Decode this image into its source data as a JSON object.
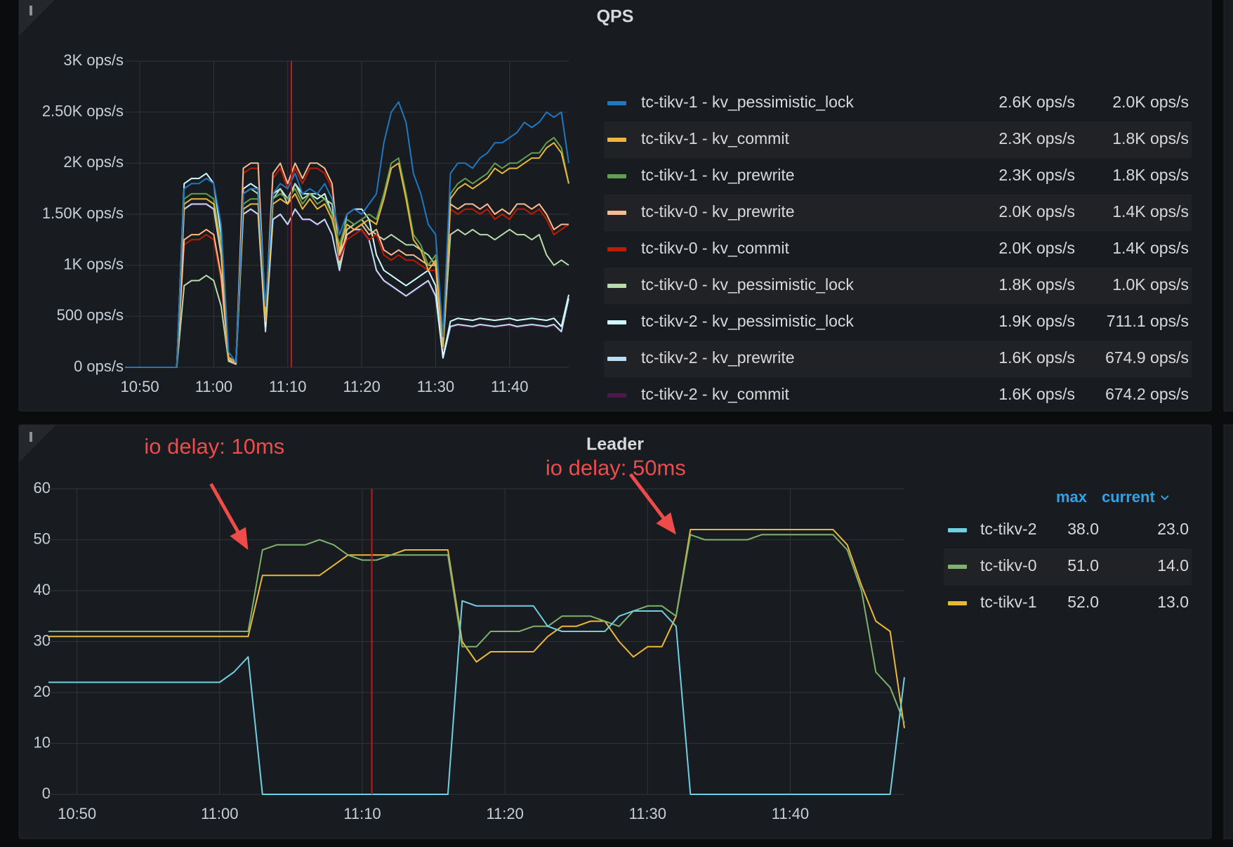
{
  "chart_data": [
    {
      "type": "line",
      "title": "QPS",
      "x": [
        "10:48",
        "10:49",
        "10:50",
        "10:51",
        "10:52",
        "10:53",
        "10:54",
        "10:55",
        "10:56",
        "10:57",
        "10:58",
        "10:59",
        "11:00",
        "11:01",
        "11:02",
        "11:03",
        "11:04",
        "11:05",
        "11:06",
        "11:07",
        "11:08",
        "11:09",
        "11:10",
        "11:11",
        "11:12",
        "11:13",
        "11:14",
        "11:15",
        "11:16",
        "11:17",
        "11:18",
        "11:19",
        "11:20",
        "11:21",
        "11:22",
        "11:23",
        "11:24",
        "11:25",
        "11:26",
        "11:27",
        "11:28",
        "11:29",
        "11:30",
        "11:31",
        "11:32",
        "11:33",
        "11:34",
        "11:35",
        "11:36",
        "11:37",
        "11:38",
        "11:39",
        "11:40",
        "11:41",
        "11:42",
        "11:43",
        "11:44",
        "11:45",
        "11:46",
        "11:47",
        "11:48"
      ],
      "xlim": [
        "10:48",
        "11:48"
      ],
      "xticks": [
        "10:50",
        "11:00",
        "11:10",
        "11:20",
        "11:30",
        "11:40"
      ],
      "ylim": [
        0,
        3000
      ],
      "yticks": [
        {
          "value": 0,
          "label": "0 ops/s"
        },
        {
          "value": 500,
          "label": "500 ops/s"
        },
        {
          "value": 1000,
          "label": "1K ops/s"
        },
        {
          "value": 1500,
          "label": "1.50K ops/s"
        },
        {
          "value": 2000,
          "label": "2K ops/s"
        },
        {
          "value": 2500,
          "label": "2.50K ops/s"
        },
        {
          "value": 3000,
          "label": "3K ops/s"
        }
      ],
      "grid": true,
      "marker": "11:10:30",
      "legend_columns": [
        "max",
        "current"
      ],
      "series": [
        {
          "name": "tc-tikv-1 - kv_pessimistic_lock",
          "color": "#1f78c1",
          "max": "2.6K ops/s",
          "current": "2.0K ops/s",
          "values": [
            0,
            0,
            0,
            0,
            0,
            0,
            0,
            0,
            1750,
            1800,
            1800,
            1850,
            1800,
            1400,
            150,
            50,
            1700,
            1750,
            1750,
            600,
            1700,
            1800,
            1750,
            1900,
            1700,
            1750,
            1700,
            1800,
            1650,
            1300,
            1500,
            1550,
            1500,
            1600,
            1700,
            2200,
            2500,
            2600,
            2400,
            1900,
            1700,
            1400,
            1300,
            300,
            1900,
            2000,
            2000,
            1950,
            2050,
            2100,
            2200,
            2200,
            2250,
            2300,
            2400,
            2350,
            2400,
            2500,
            2450,
            2500,
            2000
          ]
        },
        {
          "name": "tc-tikv-1 - kv_commit",
          "color": "#eab839",
          "max": "2.3K ops/s",
          "current": "1.8K ops/s",
          "values": [
            0,
            0,
            0,
            0,
            0,
            0,
            0,
            0,
            1600,
            1650,
            1650,
            1650,
            1600,
            1150,
            100,
            50,
            1550,
            1600,
            1600,
            450,
            1600,
            1650,
            1600,
            1700,
            1550,
            1650,
            1550,
            1600,
            1450,
            1150,
            1400,
            1350,
            1400,
            1450,
            1400,
            1650,
            1950,
            2000,
            1650,
            1250,
            1150,
            950,
            1050,
            200,
            1650,
            1750,
            1800,
            1750,
            1800,
            1850,
            1950,
            1900,
            1950,
            1950,
            2000,
            2050,
            2050,
            2150,
            2200,
            2100,
            1800
          ]
        },
        {
          "name": "tc-tikv-1 - kv_prewrite",
          "color": "#629e51",
          "max": "2.3K ops/s",
          "current": "1.8K ops/s",
          "values": [
            0,
            0,
            0,
            0,
            0,
            0,
            0,
            0,
            1650,
            1700,
            1700,
            1700,
            1650,
            1200,
            100,
            50,
            1600,
            1650,
            1650,
            500,
            1650,
            1700,
            1650,
            1750,
            1600,
            1700,
            1600,
            1650,
            1500,
            1200,
            1450,
            1400,
            1450,
            1500,
            1450,
            1700,
            2000,
            2050,
            1700,
            1300,
            1200,
            1000,
            1100,
            200,
            1700,
            1800,
            1850,
            1800,
            1850,
            1900,
            2000,
            1950,
            2000,
            2000,
            2050,
            2100,
            2100,
            2200,
            2250,
            2150,
            1800
          ]
        },
        {
          "name": "tc-tikv-0 - kv_prewrite",
          "color": "#f9ba8f",
          "max": "2.0K ops/s",
          "current": "1.4K ops/s",
          "values": [
            0,
            0,
            0,
            0,
            0,
            0,
            0,
            0,
            1250,
            1300,
            1300,
            1350,
            1300,
            900,
            80,
            30,
            1950,
            2000,
            2000,
            500,
            1900,
            2000,
            1800,
            2000,
            1850,
            2000,
            2000,
            1950,
            1800,
            1100,
            1300,
            1350,
            1400,
            1300,
            1350,
            1150,
            1100,
            1150,
            1100,
            1100,
            1050,
            1000,
            1000,
            200,
            1600,
            1550,
            1600,
            1600,
            1550,
            1600,
            1500,
            1550,
            1500,
            1600,
            1600,
            1550,
            1600,
            1500,
            1350,
            1400,
            1400
          ]
        },
        {
          "name": "tc-tikv-0 - kv_commit",
          "color": "#bf1b00",
          "max": "2.0K ops/s",
          "current": "1.4K ops/s",
          "values": [
            0,
            0,
            0,
            0,
            0,
            0,
            0,
            0,
            1200,
            1250,
            1250,
            1300,
            1250,
            850,
            80,
            30,
            1900,
            1950,
            1950,
            480,
            1850,
            1950,
            1750,
            1950,
            1800,
            1950,
            1950,
            1900,
            1750,
            1050,
            1250,
            1300,
            1350,
            1250,
            1300,
            1100,
            1050,
            1100,
            1050,
            1050,
            1000,
            950,
            950,
            190,
            1550,
            1500,
            1550,
            1550,
            1500,
            1550,
            1450,
            1500,
            1450,
            1550,
            1550,
            1500,
            1550,
            1450,
            1300,
            1350,
            1400
          ]
        },
        {
          "name": "tc-tikv-0 - kv_pessimistic_lock",
          "color": "#b7dbab",
          "max": "1.8K ops/s",
          "current": "1.0K ops/s",
          "values": [
            0,
            0,
            0,
            0,
            0,
            0,
            0,
            0,
            800,
            850,
            850,
            900,
            850,
            600,
            60,
            30,
            1700,
            1750,
            1700,
            450,
            1650,
            1750,
            1600,
            1800,
            1650,
            1700,
            1700,
            1650,
            1600,
            1000,
            1350,
            1400,
            1450,
            1350,
            1300,
            1250,
            1300,
            1250,
            1200,
            1200,
            1150,
            1100,
            1000,
            180,
            1300,
            1350,
            1300,
            1350,
            1300,
            1300,
            1250,
            1300,
            1350,
            1300,
            1300,
            1250,
            1300,
            1100,
            1000,
            1050,
            1000
          ]
        },
        {
          "name": "tc-tikv-2 - kv_pessimistic_lock",
          "color": "#cffaff",
          "max": "1.9K ops/s",
          "current": "711.1 ops/s",
          "values": [
            0,
            0,
            0,
            0,
            0,
            0,
            0,
            0,
            1800,
            1850,
            1850,
            1900,
            1800,
            1300,
            80,
            30,
            1750,
            1800,
            1750,
            400,
            1700,
            1750,
            1650,
            1800,
            1700,
            1700,
            1650,
            1700,
            1500,
            1100,
            1500,
            1550,
            1550,
            1450,
            1100,
            950,
            900,
            850,
            800,
            850,
            900,
            950,
            800,
            100,
            450,
            480,
            470,
            460,
            480,
            470,
            460,
            470,
            480,
            460,
            470,
            480,
            470,
            460,
            480,
            400,
            711.1
          ]
        },
        {
          "name": "tc-tikv-2 - kv_prewrite",
          "color": "#badff4",
          "max": "1.6K ops/s",
          "current": "674.9 ops/s",
          "values": [
            0,
            0,
            0,
            0,
            0,
            0,
            0,
            0,
            1550,
            1600,
            1600,
            1600,
            1550,
            1100,
            70,
            30,
            1500,
            1550,
            1500,
            350,
            1450,
            1500,
            1400,
            1550,
            1450,
            1450,
            1400,
            1450,
            1300,
            950,
            1300,
            1350,
            1350,
            1250,
            950,
            850,
            800,
            750,
            700,
            750,
            800,
            850,
            700,
            90,
            400,
            420,
            410,
            400,
            420,
            410,
            400,
            410,
            420,
            400,
            410,
            420,
            410,
            400,
            420,
            350,
            674.9
          ]
        },
        {
          "name": "tc-tikv-2 - kv_commit",
          "color": "#511749",
          "max": "1.6K ops/s",
          "current": "674.2 ops/s",
          "values": [
            0,
            0,
            0,
            0,
            0,
            0,
            0,
            0,
            1540,
            1590,
            1590,
            1590,
            1540,
            1090,
            70,
            30,
            1490,
            1540,
            1490,
            340,
            1440,
            1490,
            1390,
            1540,
            1440,
            1440,
            1390,
            1440,
            1290,
            940,
            1290,
            1340,
            1340,
            1240,
            940,
            840,
            790,
            740,
            690,
            740,
            790,
            840,
            690,
            90,
            390,
            410,
            400,
            390,
            410,
            400,
            390,
            400,
            410,
            390,
            400,
            410,
            400,
            390,
            410,
            340,
            674.2
          ]
        }
      ]
    },
    {
      "type": "line",
      "title": "Leader",
      "x": [
        "10:48",
        "10:49",
        "10:50",
        "10:51",
        "10:52",
        "10:53",
        "10:54",
        "10:55",
        "10:56",
        "10:57",
        "10:58",
        "10:59",
        "11:00",
        "11:01",
        "11:02",
        "11:03",
        "11:04",
        "11:05",
        "11:06",
        "11:07",
        "11:08",
        "11:09",
        "11:10",
        "11:11",
        "11:12",
        "11:13",
        "11:14",
        "11:15",
        "11:16",
        "11:17",
        "11:18",
        "11:19",
        "11:20",
        "11:21",
        "11:22",
        "11:23",
        "11:24",
        "11:25",
        "11:26",
        "11:27",
        "11:28",
        "11:29",
        "11:30",
        "11:31",
        "11:32",
        "11:33",
        "11:34",
        "11:35",
        "11:36",
        "11:37",
        "11:38",
        "11:39",
        "11:40",
        "11:41",
        "11:42",
        "11:43",
        "11:44",
        "11:45",
        "11:46",
        "11:47",
        "11:48"
      ],
      "xlim": [
        "10:48",
        "11:48"
      ],
      "xticks": [
        "10:50",
        "11:00",
        "11:10",
        "11:20",
        "11:30",
        "11:40"
      ],
      "ylim": [
        0,
        60
      ],
      "yticks": [
        0,
        10,
        20,
        30,
        40,
        50,
        60
      ],
      "grid": true,
      "marker": "11:10:40",
      "annotations": [
        {
          "text": "io delay: 10ms",
          "x": "11:02",
          "y": 48
        },
        {
          "text": "io delay: 50ms",
          "x": "11:32",
          "y": 51
        }
      ],
      "legend_columns": [
        "max",
        "current"
      ],
      "series": [
        {
          "name": "tc-tikv-2",
          "color": "#6ed0e0",
          "max": "38.0",
          "current": "23.0",
          "values": [
            22,
            22,
            22,
            22,
            22,
            22,
            22,
            22,
            22,
            22,
            22,
            22,
            22,
            24,
            27,
            0,
            0,
            0,
            0,
            0,
            0,
            0,
            0,
            0,
            0,
            0,
            0,
            0,
            0,
            38,
            37,
            37,
            37,
            37,
            37,
            33,
            32,
            32,
            32,
            32,
            35,
            36,
            36,
            36,
            33,
            0,
            0,
            0,
            0,
            0,
            0,
            0,
            0,
            0,
            0,
            0,
            0,
            0,
            0,
            0,
            23
          ]
        },
        {
          "name": "tc-tikv-0",
          "color": "#7eb26d",
          "max": "51.0",
          "current": "14.0",
          "values": [
            32,
            32,
            32,
            32,
            32,
            32,
            32,
            32,
            32,
            32,
            32,
            32,
            32,
            32,
            32,
            48,
            49,
            49,
            49,
            50,
            49,
            47,
            46,
            46,
            47,
            47,
            47,
            47,
            47,
            29,
            29,
            32,
            32,
            32,
            33,
            33,
            35,
            35,
            35,
            34,
            33,
            36,
            37,
            37,
            35,
            51,
            50,
            50,
            50,
            50,
            51,
            51,
            51,
            51,
            51,
            51,
            48,
            40,
            24,
            21,
            14
          ]
        },
        {
          "name": "tc-tikv-1",
          "color": "#eab839",
          "max": "52.0",
          "current": "13.0",
          "values": [
            31,
            31,
            31,
            31,
            31,
            31,
            31,
            31,
            31,
            31,
            31,
            31,
            31,
            31,
            31,
            43,
            43,
            43,
            43,
            43,
            45,
            47,
            47,
            47,
            47,
            48,
            48,
            48,
            48,
            30,
            26,
            28,
            28,
            28,
            28,
            31,
            33,
            33,
            34,
            34,
            30,
            27,
            29,
            29,
            35,
            52,
            52,
            52,
            52,
            52,
            52,
            52,
            52,
            52,
            52,
            52,
            49,
            41,
            34,
            32,
            13
          ]
        }
      ]
    }
  ]
}
